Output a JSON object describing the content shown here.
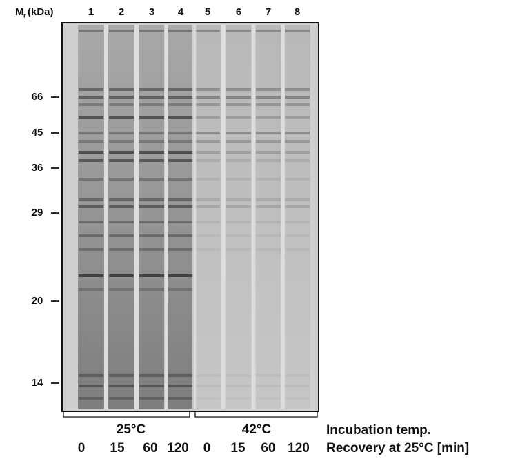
{
  "axis_label": {
    "symbol": "M",
    "subscript": "r",
    "unit": "(kDa)"
  },
  "lanes": [
    "1",
    "2",
    "3",
    "4",
    "5",
    "6",
    "7",
    "8"
  ],
  "markers": [
    "66",
    "45",
    "36",
    "29",
    "20",
    "14"
  ],
  "groups": [
    "25°C",
    "42°C"
  ],
  "row_labels": {
    "incubation": "Incubation temp.",
    "recovery": "Recovery at 25°C [min]"
  },
  "recovery_times": [
    "0",
    "15",
    "60",
    "120",
    "0",
    "15",
    "60",
    "120"
  ]
}
